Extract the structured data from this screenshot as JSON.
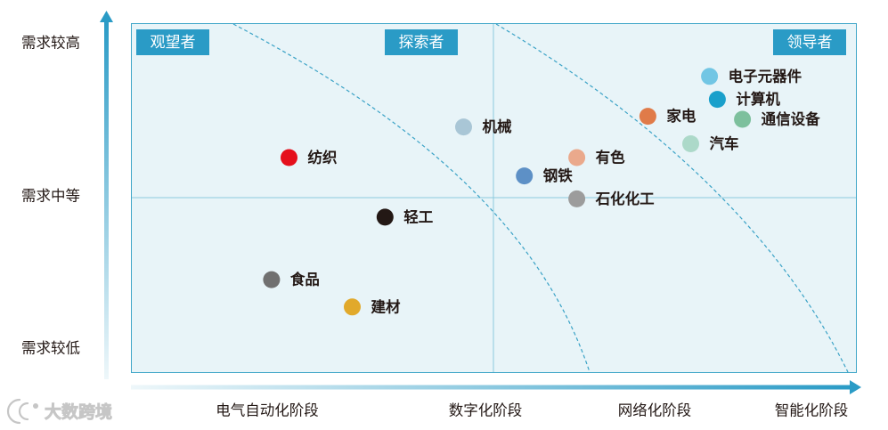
{
  "colors": {
    "accent": "#2a9bc6",
    "axis_light": "#eef7fa",
    "plot_background": "#e8f4f8",
    "plot_border": "#3fa6c8",
    "divider": "#8ccade",
    "zone_boundary": "#3aa2c6",
    "watermark": "#c6c6c6"
  },
  "watermark": {
    "text": "大数跨境"
  },
  "chart_data": {
    "type": "scatter",
    "x_ticks": [
      "电气自动化阶段",
      "数字化阶段",
      "网络化阶段",
      "智能化阶段"
    ],
    "y_ticks": [
      "需求较低",
      "需求中等",
      "需求较高"
    ],
    "zone_labels": [
      "观望者",
      "探索者",
      "领导者"
    ],
    "legend": "none",
    "points": [
      {
        "name": "电子元器件",
        "x": 3.35,
        "y": 2.78,
        "color": "#72c6e4"
      },
      {
        "name": "计算机",
        "x": 3.4,
        "y": 2.63,
        "color": "#1aa0cb"
      },
      {
        "name": "家电",
        "x": 2.96,
        "y": 2.52,
        "color": "#e07b49"
      },
      {
        "name": "通信设备",
        "x": 3.56,
        "y": 2.5,
        "color": "#7dc09d"
      },
      {
        "name": "汽车",
        "x": 3.23,
        "y": 2.34,
        "color": "#acd9c9"
      },
      {
        "name": "机械",
        "x": 1.9,
        "y": 2.45,
        "color": "#a9c6d6"
      },
      {
        "name": "纺织",
        "x": 1.1,
        "y": 2.25,
        "color": "#e50f1c"
      },
      {
        "name": "有色",
        "x": 2.54,
        "y": 2.25,
        "color": "#eaa98c"
      },
      {
        "name": "钢铁",
        "x": 2.23,
        "y": 2.13,
        "color": "#5d90c6"
      },
      {
        "name": "石化化工",
        "x": 2.54,
        "y": 1.98,
        "color": "#9c9c9c"
      },
      {
        "name": "轻工",
        "x": 1.54,
        "y": 1.86,
        "color": "#231815"
      },
      {
        "name": "食品",
        "x": 1.02,
        "y": 1.45,
        "color": "#707070"
      },
      {
        "name": "建材",
        "x": 1.39,
        "y": 1.27,
        "color": "#e1a92b"
      }
    ]
  }
}
